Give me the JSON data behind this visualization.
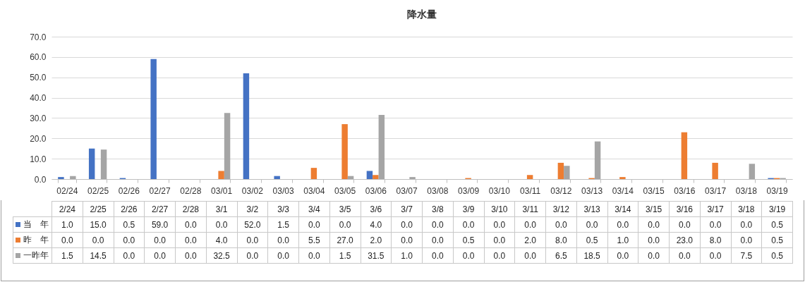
{
  "chart_data": {
    "type": "bar",
    "title": "降水量",
    "categories": [
      "02/24",
      "02/25",
      "02/26",
      "02/27",
      "02/28",
      "03/01",
      "03/02",
      "03/03",
      "03/04",
      "03/05",
      "03/06",
      "03/07",
      "03/08",
      "03/09",
      "03/10",
      "03/11",
      "03/12",
      "03/13",
      "03/14",
      "03/15",
      "03/16",
      "03/17",
      "03/18",
      "03/19"
    ],
    "annotations": [
      "2/24",
      "2/25",
      "2/26",
      "2/27",
      "2/28",
      "3/1",
      "3/2",
      "3/3",
      "3/4",
      "3/5",
      "3/6",
      "3/7",
      "3/8",
      "3/9",
      "3/10",
      "3/11",
      "3/12",
      "3/13",
      "3/14",
      "3/15",
      "3/16",
      "3/17",
      "3/18",
      "3/19"
    ],
    "series": [
      {
        "name": "当　年",
        "color": "#4472c4",
        "values": [
          1.0,
          15.0,
          0.5,
          59.0,
          0.0,
          0.0,
          52.0,
          1.5,
          0.0,
          0.0,
          4.0,
          0.0,
          0.0,
          0.0,
          0.0,
          0.0,
          0.0,
          0.0,
          0.0,
          0.0,
          0.0,
          0.0,
          0.0,
          0.5
        ],
        "value_labels": [
          "1.0",
          "15.0",
          "0.5",
          "59.0",
          "0.0",
          "0.0",
          "52.0",
          "1.5",
          "0.0",
          "0.0",
          "4.0",
          "0.0",
          "0.0",
          "0.0",
          "0.0",
          "0.0",
          "0.0",
          "0.0",
          "0.0",
          "0.0",
          "0.0",
          "0.0",
          "0.0",
          "0.5"
        ]
      },
      {
        "name": "昨　年",
        "color": "#ed7d31",
        "values": [
          0.0,
          0.0,
          0.0,
          0.0,
          0.0,
          4.0,
          0.0,
          0.0,
          5.5,
          27.0,
          2.0,
          0.0,
          0.0,
          0.5,
          0.0,
          2.0,
          8.0,
          0.5,
          1.0,
          0.0,
          23.0,
          8.0,
          0.0,
          0.5
        ],
        "value_labels": [
          "0.0",
          "0.0",
          "0.0",
          "0.0",
          "0.0",
          "4.0",
          "0.0",
          "0.0",
          "5.5",
          "27.0",
          "2.0",
          "0.0",
          "0.0",
          "0.5",
          "0.0",
          "2.0",
          "8.0",
          "0.5",
          "1.0",
          "0.0",
          "23.0",
          "8.0",
          "0.0",
          "0.5"
        ]
      },
      {
        "name": "一昨年",
        "color": "#a5a5a5",
        "values": [
          1.5,
          14.5,
          0.0,
          0.0,
          0.0,
          32.5,
          0.0,
          0.0,
          0.0,
          1.5,
          31.5,
          1.0,
          0.0,
          0.0,
          0.0,
          0.0,
          6.5,
          18.5,
          0.0,
          0.0,
          0.0,
          0.0,
          7.5,
          0.5
        ],
        "value_labels": [
          "1.5",
          "14.5",
          "0.0",
          "0.0",
          "0.0",
          "32.5",
          "0.0",
          "0.0",
          "0.0",
          "1.5",
          "31.5",
          "1.0",
          "0.0",
          "0.0",
          "0.0",
          "0.0",
          "6.5",
          "18.5",
          "0.0",
          "0.0",
          "0.0",
          "0.0",
          "7.5",
          "0.5"
        ]
      }
    ],
    "ylim": [
      0,
      70
    ],
    "yticks": [
      {
        "value": 0,
        "label": "0.0"
      },
      {
        "value": 10,
        "label": "10.0"
      },
      {
        "value": 20,
        "label": "20.0"
      },
      {
        "value": 30,
        "label": "30.0"
      },
      {
        "value": 40,
        "label": "40.0"
      },
      {
        "value": 50,
        "label": "50.0"
      },
      {
        "value": 60,
        "label": "60.0"
      },
      {
        "value": 70,
        "label": "70.0"
      }
    ],
    "grid": "y",
    "legend": "bottom"
  }
}
